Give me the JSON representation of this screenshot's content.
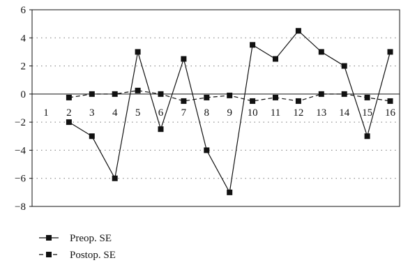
{
  "chart_data": {
    "type": "line",
    "title": "",
    "xlabel": "",
    "ylabel": "",
    "x": [
      1,
      2,
      3,
      4,
      5,
      6,
      7,
      8,
      9,
      10,
      11,
      12,
      13,
      14,
      15,
      16
    ],
    "x_tick_labels": [
      "1",
      "2",
      "3",
      "4",
      "5",
      "6",
      "7",
      "8",
      "9",
      "10",
      "11",
      "12",
      "13",
      "14",
      "15",
      "16"
    ],
    "ylim": [
      -8,
      6
    ],
    "y_ticks": [
      6,
      4,
      2,
      0,
      -2,
      -4,
      -6,
      -8
    ],
    "y_tick_labels": [
      "6",
      "4",
      "2",
      "0",
      "−2",
      "−4",
      "−6",
      "−8"
    ],
    "grid": "horizontal dotted",
    "legend_position": "bottom-left",
    "series": [
      {
        "name": "Preop. SE",
        "line_style": "solid",
        "marker": "square",
        "x": [
          2,
          3,
          4,
          5,
          6,
          7,
          8,
          9,
          10,
          11,
          12,
          13,
          14,
          15,
          16
        ],
        "values": [
          -2,
          -3,
          -6,
          3,
          -2.5,
          2.5,
          -4,
          -7,
          3.5,
          2.5,
          4.5,
          3,
          2,
          -3,
          3
        ]
      },
      {
        "name": "Postop. SE",
        "line_style": "dashed",
        "marker": "square",
        "x": [
          2,
          3,
          4,
          5,
          6,
          7,
          8,
          9,
          10,
          11,
          12,
          13,
          14,
          15,
          16
        ],
        "values": [
          -0.25,
          0,
          0,
          0.25,
          0,
          -0.5,
          -0.25,
          -0.1,
          -0.5,
          -0.25,
          -0.5,
          0,
          0,
          -0.25,
          -0.5
        ]
      }
    ],
    "colors": {
      "line": "#111111",
      "grid": "#777777"
    }
  }
}
